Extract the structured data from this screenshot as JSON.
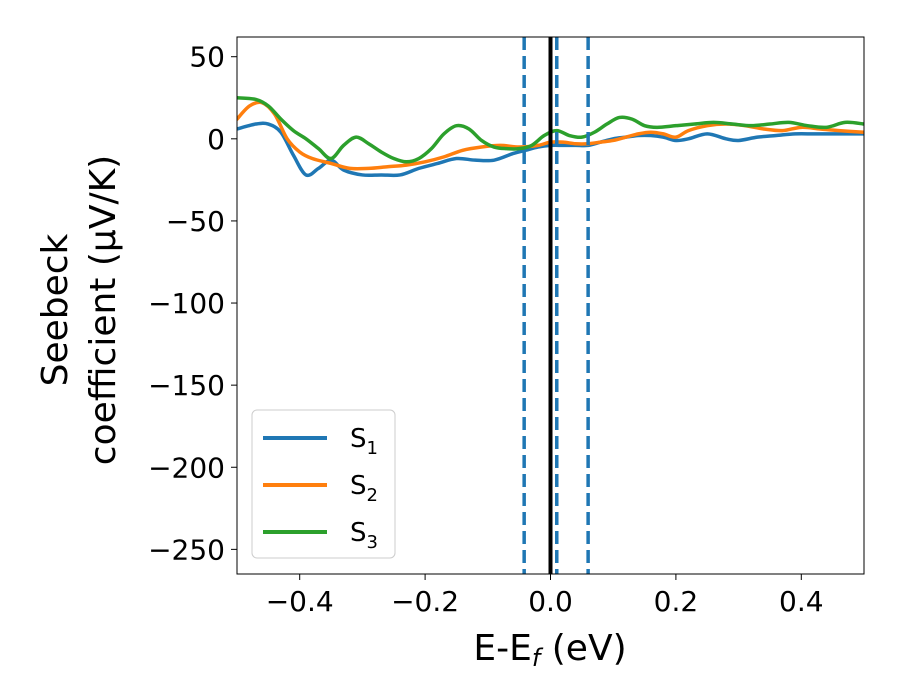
{
  "chart_data": {
    "type": "line",
    "title": "",
    "xlabel_main": "E-E",
    "xlabel_sub": "f",
    "xlabel_unit": " (eV)",
    "ylabel_line1": "Seebeck",
    "ylabel_line2": "coefficient  (μV/K)",
    "xlim": [
      -0.5,
      0.5
    ],
    "ylim": [
      -265,
      62
    ],
    "xticks": [
      -0.4,
      -0.2,
      0.0,
      0.2,
      0.4
    ],
    "xtick_labels": [
      "−0.4",
      "−0.2",
      "0.0",
      "0.2",
      "0.4"
    ],
    "yticks": [
      50,
      0,
      -50,
      -100,
      -150,
      -200,
      -250
    ],
    "ytick_labels": [
      "50",
      "0",
      "−50",
      "−100",
      "−150",
      "−200",
      "−250"
    ],
    "grid": false,
    "legend_position": "lower-left",
    "vlines": [
      {
        "x": 0.0,
        "style": "solid",
        "color": "#000000"
      },
      {
        "x": -0.042,
        "style": "dashed",
        "color": "#1f77b4"
      },
      {
        "x": 0.01,
        "style": "dashed",
        "color": "#1f77b4"
      },
      {
        "x": 0.06,
        "style": "dashed",
        "color": "#1f77b4"
      }
    ],
    "series": [
      {
        "name": "S",
        "sub": "1",
        "color": "#1f77b4",
        "x": [
          -0.5,
          -0.47,
          -0.45,
          -0.43,
          -0.41,
          -0.39,
          -0.37,
          -0.35,
          -0.33,
          -0.3,
          -0.27,
          -0.24,
          -0.21,
          -0.18,
          -0.15,
          -0.12,
          -0.09,
          -0.06,
          -0.04,
          -0.02,
          0.0,
          0.02,
          0.04,
          0.06,
          0.08,
          0.1,
          0.12,
          0.14,
          0.16,
          0.18,
          0.2,
          0.22,
          0.25,
          0.28,
          0.3,
          0.33,
          0.36,
          0.39,
          0.42,
          0.45,
          0.48,
          0.5
        ],
        "y": [
          6,
          9,
          9,
          4,
          -10,
          -22,
          -18,
          -13,
          -19,
          -22,
          -22,
          -22,
          -18,
          -15,
          -12,
          -13,
          -13,
          -9,
          -7,
          -5,
          -4,
          -4,
          -4,
          -4,
          -2,
          0,
          1,
          2,
          2,
          1,
          -1,
          0,
          3,
          0,
          -1,
          1,
          2,
          3,
          3,
          3,
          3,
          3
        ]
      },
      {
        "name": "S",
        "sub": "2",
        "color": "#ff7f0e",
        "x": [
          -0.5,
          -0.48,
          -0.46,
          -0.44,
          -0.42,
          -0.4,
          -0.38,
          -0.35,
          -0.32,
          -0.29,
          -0.26,
          -0.23,
          -0.2,
          -0.17,
          -0.14,
          -0.11,
          -0.08,
          -0.05,
          -0.02,
          0.0,
          0.02,
          0.04,
          0.06,
          0.08,
          0.1,
          0.12,
          0.14,
          0.16,
          0.18,
          0.2,
          0.22,
          0.25,
          0.28,
          0.31,
          0.34,
          0.37,
          0.4,
          0.43,
          0.46,
          0.5
        ],
        "y": [
          12,
          20,
          22,
          15,
          0,
          -8,
          -12,
          -15,
          -18,
          -18,
          -17,
          -16,
          -14,
          -11,
          -7,
          -5,
          -4,
          -5,
          -4,
          -2,
          -2,
          -3,
          -3,
          -2,
          -1,
          1,
          3,
          4,
          3,
          1,
          5,
          8,
          9,
          8,
          6,
          5,
          7,
          6,
          5,
          4
        ]
      },
      {
        "name": "S",
        "sub": "3",
        "color": "#2ca02c",
        "x": [
          -0.5,
          -0.47,
          -0.45,
          -0.43,
          -0.41,
          -0.39,
          -0.37,
          -0.35,
          -0.33,
          -0.31,
          -0.29,
          -0.27,
          -0.25,
          -0.23,
          -0.21,
          -0.19,
          -0.17,
          -0.15,
          -0.13,
          -0.11,
          -0.09,
          -0.07,
          -0.05,
          -0.03,
          -0.01,
          0.01,
          0.03,
          0.05,
          0.07,
          0.09,
          0.11,
          0.13,
          0.15,
          0.17,
          0.2,
          0.23,
          0.26,
          0.29,
          0.32,
          0.35,
          0.38,
          0.41,
          0.44,
          0.47,
          0.5
        ],
        "y": [
          25,
          24,
          20,
          12,
          5,
          0,
          -6,
          -12,
          -4,
          1,
          -3,
          -8,
          -12,
          -14,
          -12,
          -6,
          3,
          8,
          6,
          -1,
          -5,
          -6,
          -6,
          -4,
          2,
          5,
          2,
          1,
          4,
          9,
          13,
          12,
          8,
          7,
          8,
          9,
          10,
          9,
          8,
          9,
          10,
          8,
          7,
          10,
          9
        ]
      }
    ]
  }
}
